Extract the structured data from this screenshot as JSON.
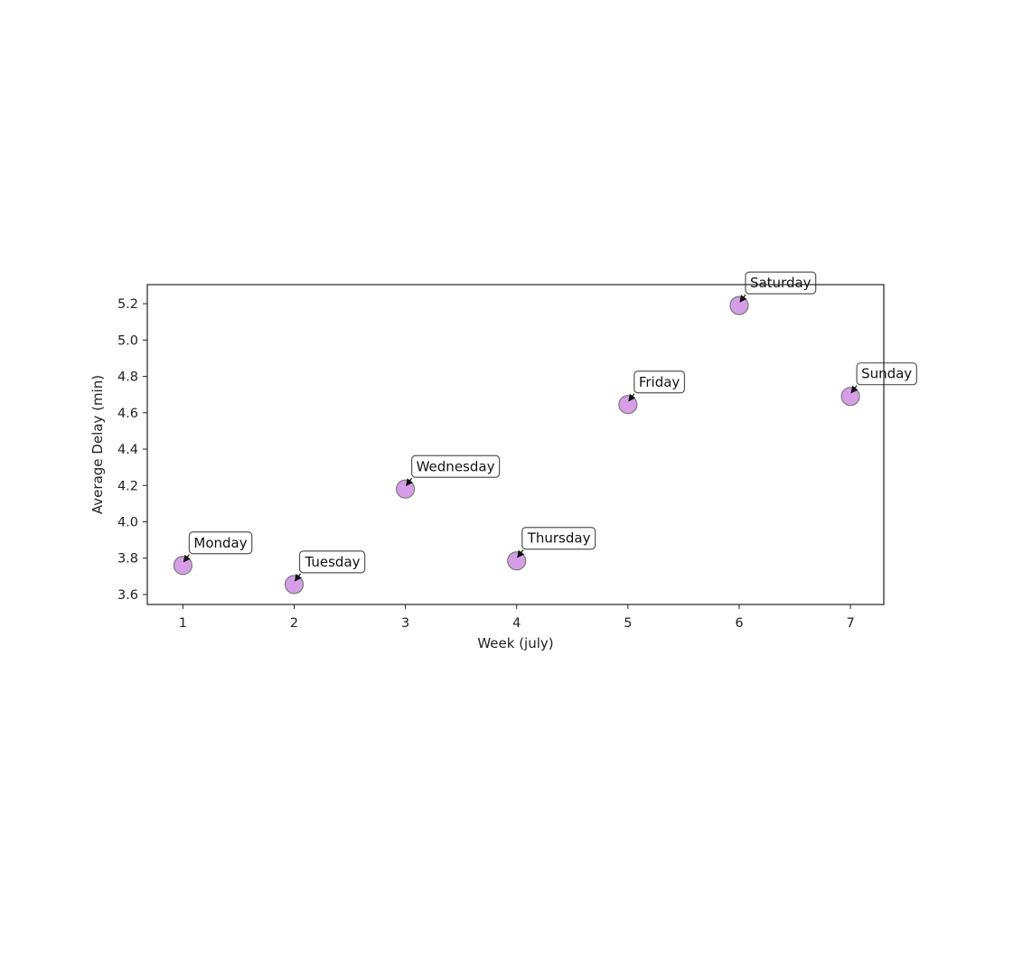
{
  "chart_data": {
    "type": "scatter",
    "title": "",
    "xlabel": "Week (july)",
    "ylabel": "Average Delay (min)",
    "xlim": [
      0.68,
      7.3
    ],
    "ylim": [
      3.545,
      5.305
    ],
    "x_ticks": [
      1,
      2,
      3,
      4,
      5,
      6,
      7
    ],
    "y_ticks": [
      3.6,
      3.8,
      4.0,
      4.2,
      4.4,
      4.6,
      4.8,
      5.0,
      5.2
    ],
    "y_tick_labels": [
      "3.6",
      "3.8",
      "4.0",
      "4.2",
      "4.4",
      "4.6",
      "4.8",
      "5.0",
      "5.2"
    ],
    "grid": false,
    "legend": "none",
    "marker_color": "#d69ee6",
    "marker_edge_color": "#7a7a7a",
    "points": [
      {
        "x": 1,
        "y": 3.76,
        "label": "Monday"
      },
      {
        "x": 2,
        "y": 3.655,
        "label": "Tuesday"
      },
      {
        "x": 3,
        "y": 4.18,
        "label": "Wednesday"
      },
      {
        "x": 4,
        "y": 3.785,
        "label": "Thursday"
      },
      {
        "x": 5,
        "y": 4.645,
        "label": "Friday"
      },
      {
        "x": 6,
        "y": 5.19,
        "label": "Saturday"
      },
      {
        "x": 7,
        "y": 4.69,
        "label": "Sunday"
      }
    ]
  }
}
